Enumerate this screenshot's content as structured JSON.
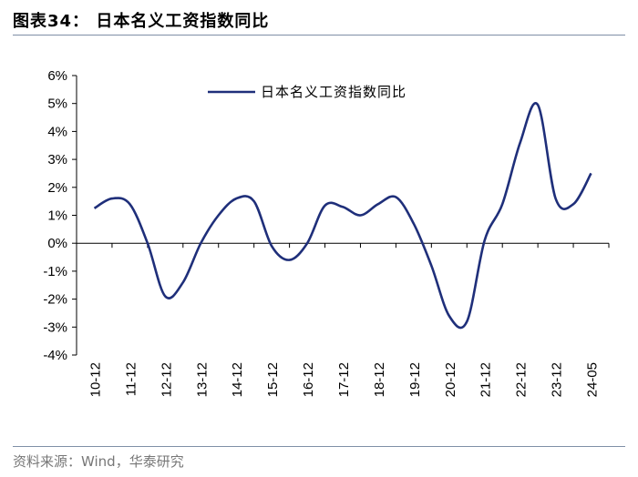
{
  "header": {
    "title": "图表34：  日本名义工资指数同比"
  },
  "footer": {
    "source": "资料来源：Wind，华泰研究"
  },
  "chart_data": {
    "type": "line",
    "title": "",
    "xlabel": "",
    "ylabel": "",
    "categories": [
      "10-12",
      "11-12",
      "12-12",
      "13-12",
      "14-12",
      "15-12",
      "16-12",
      "17-12",
      "18-12",
      "19-12",
      "20-12",
      "21-12",
      "22-12",
      "23-12",
      "24-05"
    ],
    "y_ticks": [
      "-4%",
      "-3%",
      "-2%",
      "-1%",
      "0%",
      "1%",
      "2%",
      "3%",
      "4%",
      "5%",
      "6%"
    ],
    "ylim": [
      -4,
      6
    ],
    "legend_position": "top",
    "grid": false,
    "series": [
      {
        "name": "日本名义工资指数同比",
        "color": "#1f2f7a",
        "x": [
          0,
          0.5,
          1.0,
          1.5,
          2.0,
          2.5,
          3.0,
          3.5,
          4.0,
          4.5,
          5.0,
          5.5,
          6.0,
          6.5,
          7.0,
          7.5,
          8.0,
          8.5,
          9.0,
          9.5,
          10.0,
          10.5,
          11.0,
          11.5,
          12.0,
          12.5,
          13.0,
          13.5,
          14.0
        ],
        "y": [
          1.25,
          1.6,
          1.4,
          0.0,
          -1.9,
          -1.4,
          0.0,
          1.0,
          1.6,
          1.5,
          -0.1,
          -0.6,
          0.0,
          1.35,
          1.3,
          1.0,
          1.4,
          1.65,
          0.7,
          -0.8,
          -2.6,
          -2.8,
          0.1,
          1.4,
          3.6,
          4.95,
          1.6,
          1.4,
          2.5
        ]
      }
    ]
  }
}
